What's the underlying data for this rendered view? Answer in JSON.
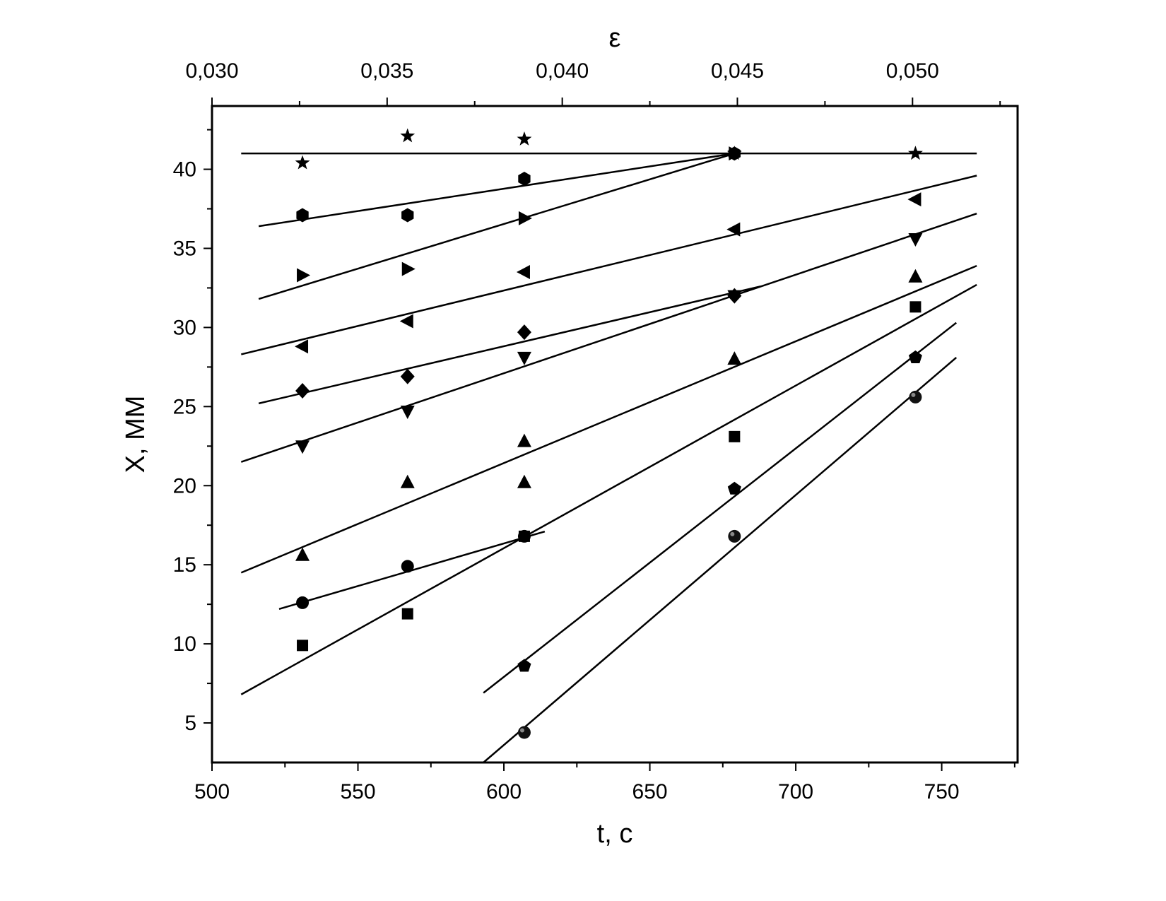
{
  "chart_data": {
    "type": "scatter",
    "xlabel": "t, c",
    "ylabel": "X, MM",
    "top_xlabel": "ε",
    "xlim": [
      500,
      776
    ],
    "ylim": [
      2.5,
      44
    ],
    "x_ticks": [
      "500",
      "550",
      "600",
      "650",
      "700",
      "750"
    ],
    "y_ticks": [
      "5",
      "10",
      "15",
      "20",
      "25",
      "30",
      "35",
      "40"
    ],
    "top_ticks": [
      "0,030",
      "0,035",
      "0,040",
      "0,045",
      "0,050"
    ],
    "top_tick_t": [
      500,
      560,
      620,
      680,
      740
    ],
    "grid": false,
    "series": [
      {
        "marker": "star",
        "points": [
          [
            531,
            40.4
          ],
          [
            567,
            42.1
          ],
          [
            607,
            41.9
          ],
          [
            679,
            41.0
          ],
          [
            741,
            41.0
          ]
        ],
        "fit": [
          [
            510,
            41.0
          ],
          [
            762,
            41.0
          ]
        ]
      },
      {
        "marker": "hexagon",
        "points": [
          [
            531,
            37.1
          ],
          [
            567,
            37.1
          ],
          [
            607,
            39.4
          ],
          [
            679,
            41.0
          ]
        ],
        "fit": [
          [
            516,
            36.4
          ],
          [
            679,
            41.0
          ]
        ]
      },
      {
        "marker": "triangle-right",
        "points": [
          [
            531,
            33.3
          ],
          [
            567,
            33.7
          ],
          [
            607,
            36.9
          ],
          [
            679,
            41.0
          ]
        ],
        "fit": [
          [
            516,
            31.8
          ],
          [
            679,
            41.0
          ]
        ]
      },
      {
        "marker": "triangle-left",
        "points": [
          [
            531,
            28.8
          ],
          [
            567,
            30.4
          ],
          [
            607,
            33.5
          ],
          [
            679,
            36.2
          ],
          [
            741,
            38.1
          ]
        ],
        "fit": [
          [
            510,
            28.3
          ],
          [
            762,
            39.6
          ]
        ]
      },
      {
        "marker": "diamond",
        "points": [
          [
            531,
            26.0
          ],
          [
            567,
            26.9
          ],
          [
            607,
            29.7
          ],
          [
            679,
            32.0
          ]
        ],
        "fit": [
          [
            516,
            25.2
          ],
          [
            688,
            32.6
          ]
        ]
      },
      {
        "marker": "triangle-down",
        "points": [
          [
            531,
            22.5
          ],
          [
            567,
            24.7
          ],
          [
            607,
            28.1
          ],
          [
            679,
            32.0
          ],
          [
            741,
            35.6
          ]
        ],
        "fit": [
          [
            510,
            21.5
          ],
          [
            762,
            37.2
          ]
        ]
      },
      {
        "marker": "triangle-up",
        "points": [
          [
            531,
            15.6
          ],
          [
            567,
            20.2
          ],
          [
            607,
            22.8
          ],
          [
            607,
            20.2
          ],
          [
            679,
            28.0
          ],
          [
            741,
            33.2
          ]
        ],
        "fit": [
          [
            510,
            14.5
          ],
          [
            762,
            33.9
          ]
        ]
      },
      {
        "marker": "circle",
        "points": [
          [
            531,
            12.6
          ],
          [
            567,
            14.9
          ],
          [
            607,
            16.8
          ]
        ],
        "fit": [
          [
            523,
            12.2
          ],
          [
            614,
            17.1
          ]
        ]
      },
      {
        "marker": "square",
        "points": [
          [
            531,
            9.9
          ],
          [
            567,
            11.9
          ],
          [
            607,
            16.8
          ],
          [
            679,
            23.1
          ],
          [
            741,
            31.3
          ]
        ],
        "fit": [
          [
            510,
            6.8
          ],
          [
            762,
            32.7
          ]
        ]
      },
      {
        "marker": "pentagon",
        "points": [
          [
            607,
            8.6
          ],
          [
            679,
            19.8
          ],
          [
            741,
            28.1
          ]
        ],
        "fit": [
          [
            593,
            6.9
          ],
          [
            755,
            30.3
          ]
        ]
      },
      {
        "marker": "sphere",
        "points": [
          [
            607,
            4.4
          ],
          [
            679,
            16.8
          ],
          [
            741,
            25.6
          ]
        ],
        "fit": [
          [
            593,
            2.5
          ],
          [
            755,
            28.1
          ]
        ]
      }
    ]
  }
}
